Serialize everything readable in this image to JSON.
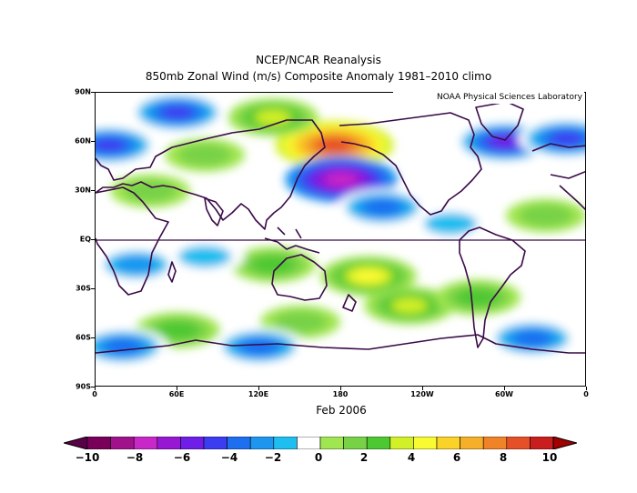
{
  "title": {
    "line1": "NCEP/NCAR Reanalysis",
    "line2": "850mb Zonal Wind (m/s) Composite Anomaly 1981–2010 climo"
  },
  "credit": "NOAA Physical Sciences Laboratory",
  "date_label": "Feb 2006",
  "map": {
    "projection": "equirectangular",
    "lon_range": [
      0,
      360
    ],
    "lat_range": [
      -90,
      90
    ],
    "lat_labels": [
      "90N",
      "60N",
      "30N",
      "EQ",
      "30S",
      "60S",
      "90S"
    ],
    "lat_values": [
      90,
      60,
      30,
      0,
      -30,
      -60,
      -90
    ],
    "lon_labels": [
      "0",
      "60E",
      "120E",
      "180",
      "120W",
      "60W",
      "0"
    ],
    "lon_values": [
      0,
      60,
      120,
      180,
      240,
      300,
      360
    ],
    "colors": {
      "coastline": "#3a0a48",
      "equator": "#3a0a48"
    }
  },
  "colorbar": {
    "ticks": [
      "−10",
      "−8",
      "−6",
      "−4",
      "−2",
      "0",
      "2",
      "4",
      "6",
      "8",
      "10"
    ],
    "levels": [
      -10,
      -9,
      -8,
      -7,
      -6,
      -5,
      -4,
      -3,
      -2,
      -1,
      0,
      1,
      2,
      3,
      4,
      5,
      6,
      7,
      8,
      9,
      10
    ],
    "colors": [
      "#78005a",
      "#a0128c",
      "#c828c8",
      "#9618d2",
      "#6e1ee6",
      "#3c3cf0",
      "#1e6ef0",
      "#1e96f0",
      "#1ebef0",
      "#ffffff",
      "#ffffff",
      "#a0e650",
      "#78d246",
      "#4ec832",
      "#d2f028",
      "#fafa32",
      "#fad228",
      "#f5af28",
      "#f08228",
      "#e65028",
      "#c81e1e"
    ],
    "under_color": "#5a0046",
    "over_color": "#a00000"
  },
  "chart_data": {
    "type": "heatmap",
    "variable": "850mb Zonal Wind (m/s) Composite Anomaly",
    "units": "m/s",
    "value_range": [
      -10,
      10
    ],
    "features": [
      {
        "lon": 175,
        "lat": 58,
        "value": 9
      },
      {
        "lon": 180,
        "lat": 37,
        "value": -8
      },
      {
        "lon": 210,
        "lat": 20,
        "value": -4
      },
      {
        "lon": 300,
        "lat": 60,
        "value": -6
      },
      {
        "lon": 345,
        "lat": 62,
        "value": -5
      },
      {
        "lon": 130,
        "lat": 75,
        "value": 4
      },
      {
        "lon": 60,
        "lat": 78,
        "value": -5
      },
      {
        "lon": 10,
        "lat": 58,
        "value": -5
      },
      {
        "lon": 80,
        "lat": 52,
        "value": 2
      },
      {
        "lon": 40,
        "lat": 30,
        "value": 2
      },
      {
        "lon": 200,
        "lat": -22,
        "value": 5
      },
      {
        "lon": 130,
        "lat": -15,
        "value": 3
      },
      {
        "lon": 80,
        "lat": -10,
        "value": -2
      },
      {
        "lon": 30,
        "lat": -15,
        "value": -3
      },
      {
        "lon": 150,
        "lat": -50,
        "value": 2
      },
      {
        "lon": 230,
        "lat": -40,
        "value": 4
      },
      {
        "lon": 60,
        "lat": -55,
        "value": 3
      },
      {
        "lon": 20,
        "lat": -65,
        "value": -4
      },
      {
        "lon": 120,
        "lat": -65,
        "value": -4
      },
      {
        "lon": 320,
        "lat": -60,
        "value": -4
      },
      {
        "lon": 280,
        "lat": -35,
        "value": 3
      },
      {
        "lon": 260,
        "lat": 10,
        "value": -2
      },
      {
        "lon": 330,
        "lat": 15,
        "value": 2
      }
    ]
  }
}
